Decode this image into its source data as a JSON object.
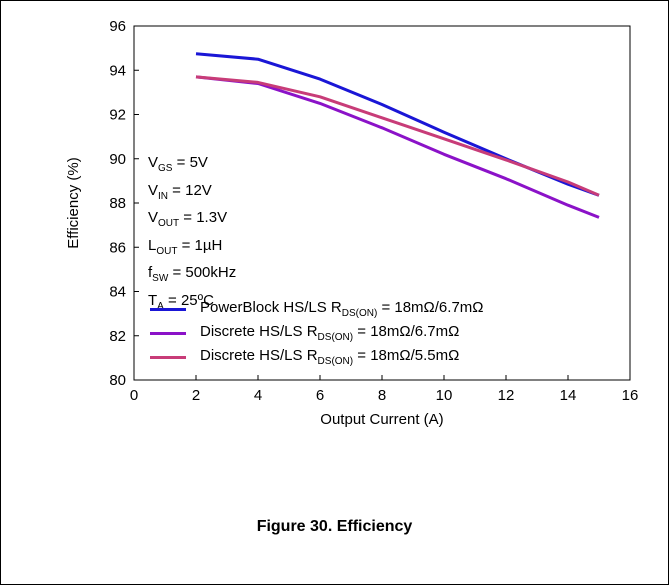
{
  "caption": "Figure 30. Efficiency",
  "conditions": [
    {
      "main": "V",
      "sub": "GS",
      "rest": " = 5V"
    },
    {
      "main": "V",
      "sub": "IN",
      "rest": " = 12V"
    },
    {
      "main": "V",
      "sub": "OUT",
      "rest": " = 1.3V"
    },
    {
      "main": "L",
      "sub": "OUT",
      "rest": " = 1µH"
    },
    {
      "main": "f",
      "sub": "SW",
      "rest": " = 500kHz"
    },
    {
      "main": "T",
      "sub": "A",
      "rest": " = 25ºC"
    }
  ],
  "legend": [
    {
      "pre": "PowerBlock  HS/LS R",
      "sub": "DS(ON)",
      "post": " = 18mΩ/6.7mΩ",
      "color": "#1a16d6"
    },
    {
      "pre": "Discrete  HS/LS R",
      "sub": "DS(ON)",
      "post": " = 18mΩ/6.7mΩ",
      "color": "#8b12c8"
    },
    {
      "pre": "Discrete  HS/LS R",
      "sub": "DS(ON)",
      "post": " = 18mΩ/5.5mΩ",
      "color": "#c83c78"
    }
  ],
  "chart_data": {
    "type": "line",
    "xlabel": "Output Current (A)",
    "ylabel": "Efficiency (%)",
    "xlim": [
      0,
      16
    ],
    "ylim": [
      80,
      96
    ],
    "xticks": [
      0,
      2,
      4,
      6,
      8,
      10,
      12,
      14,
      16
    ],
    "yticks": [
      80,
      82,
      84,
      86,
      88,
      90,
      92,
      94,
      96
    ],
    "grid": false,
    "legend_position": "bottom-left",
    "series": [
      {
        "color": "#1a16d6",
        "x": [
          2,
          4,
          6,
          8,
          10,
          12,
          14,
          15
        ],
        "y": [
          94.75,
          94.5,
          93.6,
          92.45,
          91.2,
          90.0,
          88.85,
          88.35
        ]
      },
      {
        "color": "#8b12c8",
        "x": [
          2,
          4,
          6,
          8,
          10,
          12,
          14,
          15
        ],
        "y": [
          93.7,
          93.4,
          92.5,
          91.4,
          90.2,
          89.1,
          87.9,
          87.35
        ]
      },
      {
        "color": "#c83c78",
        "x": [
          2,
          4,
          6,
          8,
          10,
          12,
          14,
          15
        ],
        "y": [
          93.7,
          93.45,
          92.8,
          91.85,
          90.9,
          89.95,
          88.95,
          88.35
        ]
      }
    ]
  }
}
